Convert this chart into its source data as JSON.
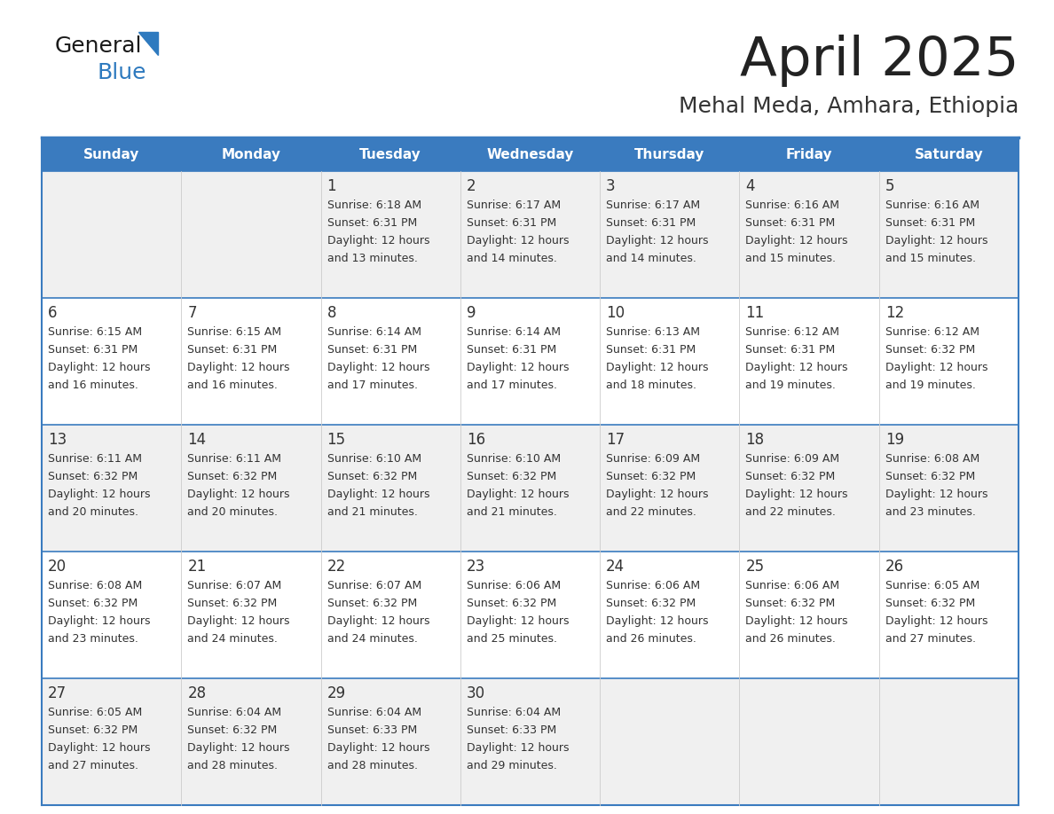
{
  "title": "April 2025",
  "subtitle": "Mehal Meda, Amhara, Ethiopia",
  "header_color": "#3a7bbf",
  "header_text_color": "#ffffff",
  "body_bg_color": "#ffffff",
  "alt_row_color": "#f0f0f0",
  "border_color": "#3a7bbf",
  "day_headers": [
    "Sunday",
    "Monday",
    "Tuesday",
    "Wednesday",
    "Thursday",
    "Friday",
    "Saturday"
  ],
  "title_color": "#222222",
  "subtitle_color": "#333333",
  "cell_text_color": "#333333",
  "days": [
    {
      "row": 0,
      "col": 0,
      "num": "",
      "sunrise": "",
      "sunset": "",
      "daylight": ""
    },
    {
      "row": 0,
      "col": 1,
      "num": "",
      "sunrise": "",
      "sunset": "",
      "daylight": ""
    },
    {
      "row": 0,
      "col": 2,
      "num": "1",
      "sunrise": "Sunrise: 6:18 AM",
      "sunset": "Sunset: 6:31 PM",
      "daylight": "Daylight: 12 hours\nand 13 minutes."
    },
    {
      "row": 0,
      "col": 3,
      "num": "2",
      "sunrise": "Sunrise: 6:17 AM",
      "sunset": "Sunset: 6:31 PM",
      "daylight": "Daylight: 12 hours\nand 14 minutes."
    },
    {
      "row": 0,
      "col": 4,
      "num": "3",
      "sunrise": "Sunrise: 6:17 AM",
      "sunset": "Sunset: 6:31 PM",
      "daylight": "Daylight: 12 hours\nand 14 minutes."
    },
    {
      "row": 0,
      "col": 5,
      "num": "4",
      "sunrise": "Sunrise: 6:16 AM",
      "sunset": "Sunset: 6:31 PM",
      "daylight": "Daylight: 12 hours\nand 15 minutes."
    },
    {
      "row": 0,
      "col": 6,
      "num": "5",
      "sunrise": "Sunrise: 6:16 AM",
      "sunset": "Sunset: 6:31 PM",
      "daylight": "Daylight: 12 hours\nand 15 minutes."
    },
    {
      "row": 1,
      "col": 0,
      "num": "6",
      "sunrise": "Sunrise: 6:15 AM",
      "sunset": "Sunset: 6:31 PM",
      "daylight": "Daylight: 12 hours\nand 16 minutes."
    },
    {
      "row": 1,
      "col": 1,
      "num": "7",
      "sunrise": "Sunrise: 6:15 AM",
      "sunset": "Sunset: 6:31 PM",
      "daylight": "Daylight: 12 hours\nand 16 minutes."
    },
    {
      "row": 1,
      "col": 2,
      "num": "8",
      "sunrise": "Sunrise: 6:14 AM",
      "sunset": "Sunset: 6:31 PM",
      "daylight": "Daylight: 12 hours\nand 17 minutes."
    },
    {
      "row": 1,
      "col": 3,
      "num": "9",
      "sunrise": "Sunrise: 6:14 AM",
      "sunset": "Sunset: 6:31 PM",
      "daylight": "Daylight: 12 hours\nand 17 minutes."
    },
    {
      "row": 1,
      "col": 4,
      "num": "10",
      "sunrise": "Sunrise: 6:13 AM",
      "sunset": "Sunset: 6:31 PM",
      "daylight": "Daylight: 12 hours\nand 18 minutes."
    },
    {
      "row": 1,
      "col": 5,
      "num": "11",
      "sunrise": "Sunrise: 6:12 AM",
      "sunset": "Sunset: 6:31 PM",
      "daylight": "Daylight: 12 hours\nand 19 minutes."
    },
    {
      "row": 1,
      "col": 6,
      "num": "12",
      "sunrise": "Sunrise: 6:12 AM",
      "sunset": "Sunset: 6:32 PM",
      "daylight": "Daylight: 12 hours\nand 19 minutes."
    },
    {
      "row": 2,
      "col": 0,
      "num": "13",
      "sunrise": "Sunrise: 6:11 AM",
      "sunset": "Sunset: 6:32 PM",
      "daylight": "Daylight: 12 hours\nand 20 minutes."
    },
    {
      "row": 2,
      "col": 1,
      "num": "14",
      "sunrise": "Sunrise: 6:11 AM",
      "sunset": "Sunset: 6:32 PM",
      "daylight": "Daylight: 12 hours\nand 20 minutes."
    },
    {
      "row": 2,
      "col": 2,
      "num": "15",
      "sunrise": "Sunrise: 6:10 AM",
      "sunset": "Sunset: 6:32 PM",
      "daylight": "Daylight: 12 hours\nand 21 minutes."
    },
    {
      "row": 2,
      "col": 3,
      "num": "16",
      "sunrise": "Sunrise: 6:10 AM",
      "sunset": "Sunset: 6:32 PM",
      "daylight": "Daylight: 12 hours\nand 21 minutes."
    },
    {
      "row": 2,
      "col": 4,
      "num": "17",
      "sunrise": "Sunrise: 6:09 AM",
      "sunset": "Sunset: 6:32 PM",
      "daylight": "Daylight: 12 hours\nand 22 minutes."
    },
    {
      "row": 2,
      "col": 5,
      "num": "18",
      "sunrise": "Sunrise: 6:09 AM",
      "sunset": "Sunset: 6:32 PM",
      "daylight": "Daylight: 12 hours\nand 22 minutes."
    },
    {
      "row": 2,
      "col": 6,
      "num": "19",
      "sunrise": "Sunrise: 6:08 AM",
      "sunset": "Sunset: 6:32 PM",
      "daylight": "Daylight: 12 hours\nand 23 minutes."
    },
    {
      "row": 3,
      "col": 0,
      "num": "20",
      "sunrise": "Sunrise: 6:08 AM",
      "sunset": "Sunset: 6:32 PM",
      "daylight": "Daylight: 12 hours\nand 23 minutes."
    },
    {
      "row": 3,
      "col": 1,
      "num": "21",
      "sunrise": "Sunrise: 6:07 AM",
      "sunset": "Sunset: 6:32 PM",
      "daylight": "Daylight: 12 hours\nand 24 minutes."
    },
    {
      "row": 3,
      "col": 2,
      "num": "22",
      "sunrise": "Sunrise: 6:07 AM",
      "sunset": "Sunset: 6:32 PM",
      "daylight": "Daylight: 12 hours\nand 24 minutes."
    },
    {
      "row": 3,
      "col": 3,
      "num": "23",
      "sunrise": "Sunrise: 6:06 AM",
      "sunset": "Sunset: 6:32 PM",
      "daylight": "Daylight: 12 hours\nand 25 minutes."
    },
    {
      "row": 3,
      "col": 4,
      "num": "24",
      "sunrise": "Sunrise: 6:06 AM",
      "sunset": "Sunset: 6:32 PM",
      "daylight": "Daylight: 12 hours\nand 26 minutes."
    },
    {
      "row": 3,
      "col": 5,
      "num": "25",
      "sunrise": "Sunrise: 6:06 AM",
      "sunset": "Sunset: 6:32 PM",
      "daylight": "Daylight: 12 hours\nand 26 minutes."
    },
    {
      "row": 3,
      "col": 6,
      "num": "26",
      "sunrise": "Sunrise: 6:05 AM",
      "sunset": "Sunset: 6:32 PM",
      "daylight": "Daylight: 12 hours\nand 27 minutes."
    },
    {
      "row": 4,
      "col": 0,
      "num": "27",
      "sunrise": "Sunrise: 6:05 AM",
      "sunset": "Sunset: 6:32 PM",
      "daylight": "Daylight: 12 hours\nand 27 minutes."
    },
    {
      "row": 4,
      "col": 1,
      "num": "28",
      "sunrise": "Sunrise: 6:04 AM",
      "sunset": "Sunset: 6:32 PM",
      "daylight": "Daylight: 12 hours\nand 28 minutes."
    },
    {
      "row": 4,
      "col": 2,
      "num": "29",
      "sunrise": "Sunrise: 6:04 AM",
      "sunset": "Sunset: 6:33 PM",
      "daylight": "Daylight: 12 hours\nand 28 minutes."
    },
    {
      "row": 4,
      "col": 3,
      "num": "30",
      "sunrise": "Sunrise: 6:04 AM",
      "sunset": "Sunset: 6:33 PM",
      "daylight": "Daylight: 12 hours\nand 29 minutes."
    },
    {
      "row": 4,
      "col": 4,
      "num": "",
      "sunrise": "",
      "sunset": "",
      "daylight": ""
    },
    {
      "row": 4,
      "col": 5,
      "num": "",
      "sunrise": "",
      "sunset": "",
      "daylight": ""
    },
    {
      "row": 4,
      "col": 6,
      "num": "",
      "sunrise": "",
      "sunset": "",
      "daylight": ""
    }
  ],
  "num_rows": 5,
  "num_cols": 7,
  "logo_general_color": "#1a1a1a",
  "logo_blue_color": "#2e7abf"
}
